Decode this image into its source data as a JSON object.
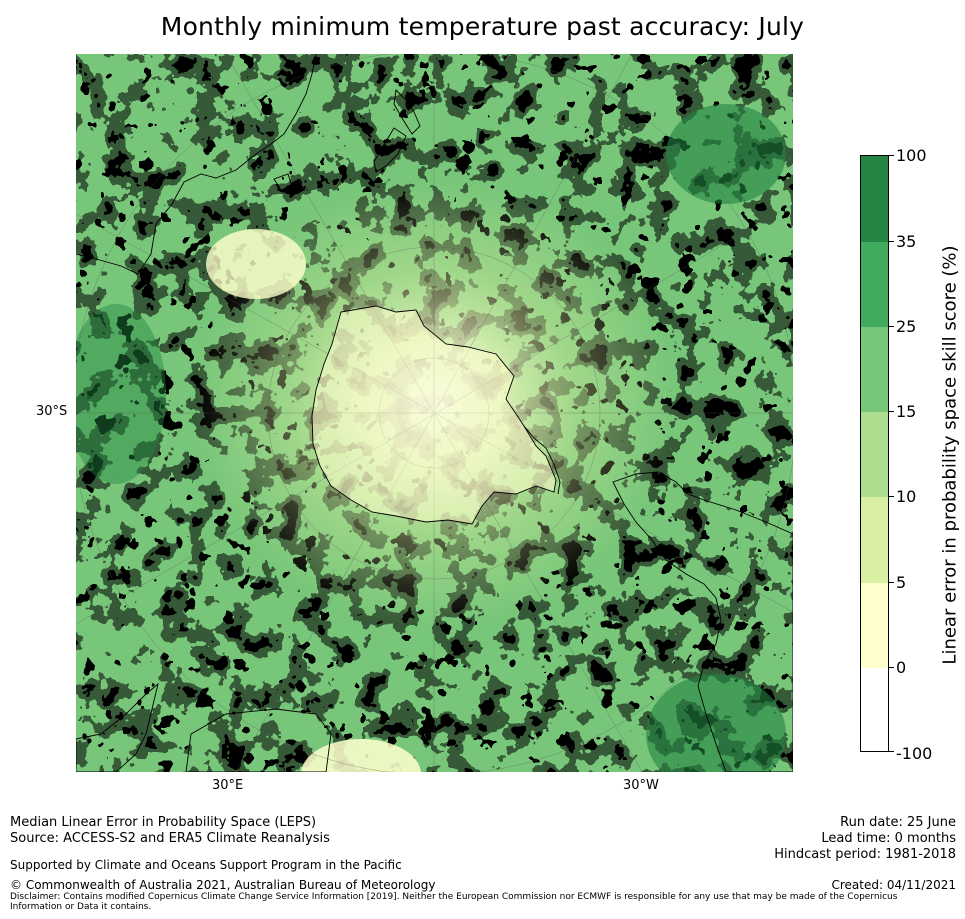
{
  "title": "Monthly minimum temperature past accuracy: July",
  "map": {
    "projection": "south-polar-stereographic",
    "lat_label": "30°S",
    "lon_labels": [
      "30°E",
      "30°W"
    ],
    "regions": [
      "Antarctica",
      "South America",
      "Australia",
      "New Zealand",
      "Southern Africa"
    ]
  },
  "colorbar": {
    "title": "Linear error in probability space skill score (%)",
    "ticks": [
      "100",
      "35",
      "25",
      "15",
      "10",
      "5",
      "0",
      "-100"
    ],
    "bins": [
      {
        "range": "35 to 100",
        "color": "#238443"
      },
      {
        "range": "25 to 35",
        "color": "#41ab5d"
      },
      {
        "range": "15 to 25",
        "color": "#78c679"
      },
      {
        "range": "10 to 15",
        "color": "#addd8e"
      },
      {
        "range": "5 to 10",
        "color": "#d9f0a3"
      },
      {
        "range": "0 to 5",
        "color": "#ffffcc"
      },
      {
        "range": "-100 to 0",
        "color": "#ffffff"
      }
    ]
  },
  "footer": {
    "line1": "Median Linear Error in Probability Space (LEPS)",
    "line2": "Source: ACCESS-S2 and ERA5 Climate Reanalysis",
    "support": "Supported by Climate and Oceans Support Program in the Pacific",
    "copyright": "© Commonwealth of Australia 2021, Australian Bureau of Meteorology",
    "disclaimer": "Disclaimer: Contains modified Copernicus Climate Change Service Information [2019]. Neither the European Commission nor ECMWF is responsible for any use that may be made of the Copernicus Information or Data it contains.",
    "run_date": "Run date: 25 June",
    "lead_time": "Lead time: 0 months",
    "hindcast": "Hindcast period: 1981-2018",
    "created": "Created: 04/11/2021"
  }
}
